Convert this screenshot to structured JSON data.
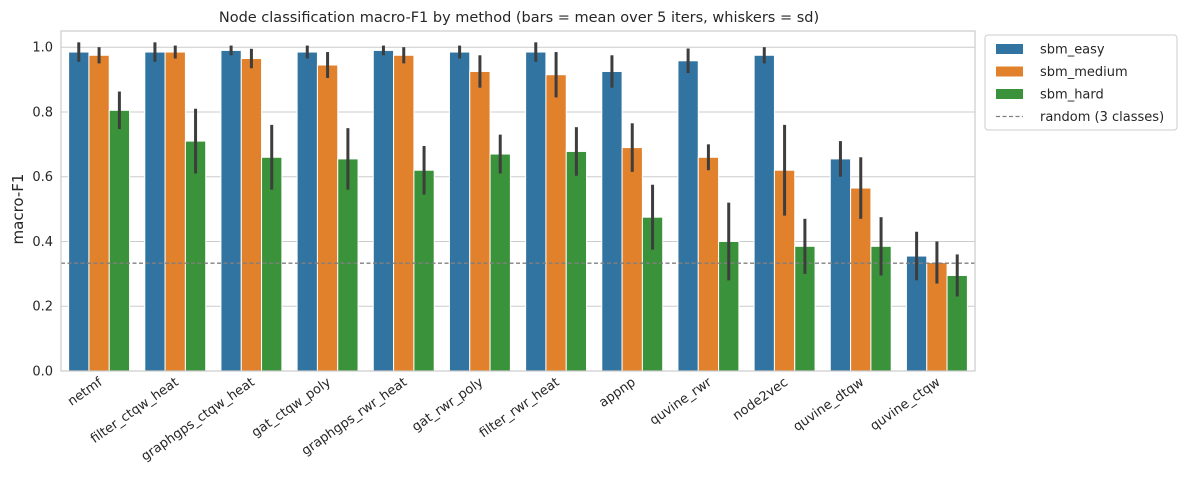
{
  "chart_data": {
    "type": "bar",
    "title": "Node classification macro-F1 by method (bars = mean over 5 iters, whiskers = sd)",
    "xlabel": "",
    "ylabel": "macro-F1",
    "ylim": [
      0,
      1.05
    ],
    "yticks": [
      0.0,
      0.2,
      0.4,
      0.6,
      0.8,
      1.0
    ],
    "ytick_labels": [
      "0.0",
      "0.2",
      "0.4",
      "0.6",
      "0.8",
      "1.0"
    ],
    "grid": true,
    "legend_position": "outside-top-right",
    "categories": [
      "netmf",
      "filter_ctqw_heat",
      "graphgps_ctqw_heat",
      "gat_ctqw_poly",
      "graphgps_rwr_heat",
      "gat_rwr_poly",
      "filter_rwr_heat",
      "appnp",
      "quvine_rwr",
      "node2vec",
      "quvine_dtqw",
      "quvine_ctqw"
    ],
    "series": [
      {
        "name": "sbm_easy",
        "color": "#3274a1",
        "values": [
          0.985,
          0.985,
          0.99,
          0.985,
          0.99,
          0.985,
          0.985,
          0.925,
          0.958,
          0.975,
          0.655,
          0.355
        ],
        "errors": [
          0.03,
          0.03,
          0.015,
          0.02,
          0.015,
          0.02,
          0.03,
          0.05,
          0.038,
          0.025,
          0.055,
          0.075
        ]
      },
      {
        "name": "sbm_medium",
        "color": "#e1812c",
        "values": [
          0.975,
          0.985,
          0.965,
          0.945,
          0.975,
          0.925,
          0.915,
          0.69,
          0.66,
          0.62,
          0.565,
          0.335
        ],
        "errors": [
          0.025,
          0.02,
          0.03,
          0.04,
          0.025,
          0.05,
          0.07,
          0.075,
          0.04,
          0.14,
          0.095,
          0.065
        ]
      },
      {
        "name": "sbm_hard",
        "color": "#3a923a",
        "values": [
          0.805,
          0.71,
          0.66,
          0.655,
          0.62,
          0.67,
          0.678,
          0.475,
          0.4,
          0.385,
          0.385,
          0.295
        ],
        "errors": [
          0.058,
          0.1,
          0.1,
          0.095,
          0.075,
          0.06,
          0.075,
          0.1,
          0.12,
          0.085,
          0.09,
          0.065
        ]
      }
    ],
    "reference_line": {
      "label": "random (3 classes)",
      "value": 0.333,
      "color": "#808080"
    }
  }
}
